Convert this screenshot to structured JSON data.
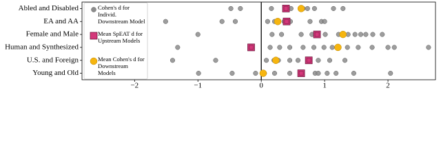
{
  "chart_data": {
    "type": "strip",
    "categories": [
      "Abled and Disabled",
      "EA and AA",
      "Female and Male",
      "Human and Synthesized",
      "U.S. and Foreign",
      "Young and Old"
    ],
    "series": [
      {
        "name": "Cohen's d for Individ. Downstream Model",
        "color": "#8c8c8c",
        "marker": "circle",
        "values": [
          [
            -0.48,
            -0.33,
            0.16,
            0.38,
            0.47,
            0.66,
            0.73,
            0.84,
            1.14,
            1.29
          ],
          [
            -1.51,
            -0.62,
            -0.41,
            0.1,
            0.21,
            0.36,
            0.46,
            0.77,
            0.95,
            1.0
          ],
          [
            -1.0,
            0.17,
            0.32,
            0.63,
            0.8,
            1.01,
            1.22,
            1.37,
            1.48,
            1.57,
            1.65,
            1.76,
            1.91
          ],
          [
            -1.32,
            0.14,
            0.29,
            0.45,
            0.66,
            0.83,
            0.99,
            1.12,
            1.22,
            1.36,
            1.53,
            1.75,
            2.0,
            2.1,
            2.64
          ],
          [
            -1.4,
            -0.72,
            0.08,
            0.2,
            0.27,
            0.45,
            0.58,
            0.75,
            0.9,
            1.08,
            1.32
          ],
          [
            -0.99,
            -0.46,
            -0.09,
            0.05,
            0.21,
            0.45,
            0.62,
            0.85,
            0.9,
            1.04,
            1.18,
            1.46,
            2.04
          ]
        ]
      },
      {
        "name": "Mean SpEAT d for Upstream Models",
        "color": "#d4377a",
        "marker": "square",
        "values": [
          0.39,
          0.4,
          0.88,
          -0.16,
          0.75,
          0.63
        ]
      },
      {
        "name": "Mean Cohen's d for Downstream Models",
        "color": "#f6b50f",
        "marker": "circle",
        "values": [
          0.63,
          0.26,
          1.29,
          1.21,
          0.23,
          0.03
        ]
      }
    ],
    "xlim": [
      -2.83,
      2.75
    ],
    "xticks": [
      {
        "value": -2,
        "label": "−2"
      },
      {
        "value": -1,
        "label": "−1"
      },
      0,
      1,
      2
    ],
    "zero_line": true
  }
}
